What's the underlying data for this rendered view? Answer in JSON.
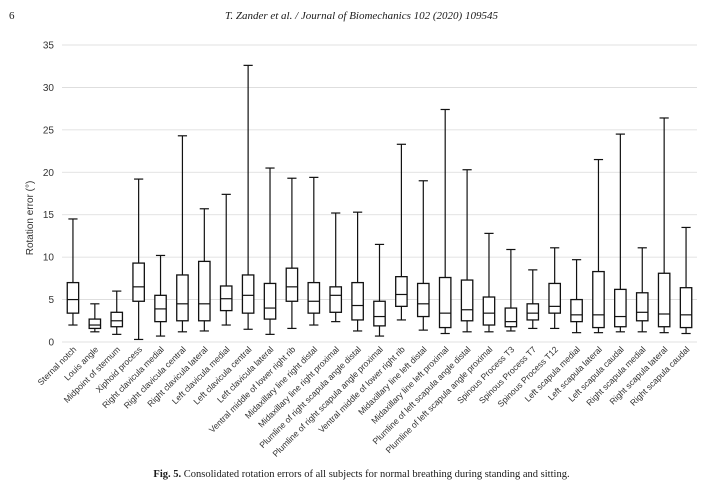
{
  "header": {
    "page_number": "6",
    "running_title": "T. Zander et al. / Journal of Biomechanics 102 (2020) 109545"
  },
  "caption": {
    "label": "Fig. 5.",
    "text": "Consolidated rotation errors of all subjects for normal breathing during standing and sitting."
  },
  "chart_data": {
    "type": "boxplot",
    "title": "",
    "xlabel": "",
    "ylabel": "Rotation error (°)",
    "ylim": [
      0,
      35
    ],
    "yticks": [
      0,
      5,
      10,
      15,
      20,
      25,
      30,
      35
    ],
    "grid": "horizontal",
    "categories": [
      "Sternal notch",
      "Louis angle",
      "Midpoint of sternum",
      "Xiphoid process",
      "Right clavicula medial",
      "Right clavicula central",
      "Right clavicula lateral",
      "Left clavicula medial",
      "Left clavicula central",
      "Left clavicula lateral",
      "Ventral middle of lower right rib",
      "Midaxillary line right distal",
      "Midaxillary line right proximal",
      "Plumline of right scapula angle distal",
      "Plumline of right scapula angle proximal",
      "Ventral middle of lower right rib",
      "Midaxillary line left distal",
      "Midaxillary line left proximal",
      "Plumline of left scapula angle distal",
      "Plumline of left scapula angle proximal",
      "Spinous Process T3",
      "Spinous Process T7",
      "Spinous Process T12",
      "Left scapula medial",
      "Left scapula lateral",
      "Left scapula caudal",
      "Right scapula medial",
      "Right scapula lateral",
      "Right scapula caudal"
    ],
    "boxes": [
      {
        "min": 2.0,
        "q1": 3.4,
        "median": 5.0,
        "q3": 7.0,
        "max": 14.5
      },
      {
        "min": 1.2,
        "q1": 1.6,
        "median": 2.0,
        "q3": 2.7,
        "max": 4.5
      },
      {
        "min": 0.9,
        "q1": 1.8,
        "median": 2.5,
        "q3": 3.5,
        "max": 6.0
      },
      {
        "min": 0.3,
        "q1": 4.8,
        "median": 6.5,
        "q3": 9.3,
        "max": 19.2
      },
      {
        "min": 0.7,
        "q1": 2.4,
        "median": 3.9,
        "q3": 5.5,
        "max": 10.2
      },
      {
        "min": 1.2,
        "q1": 2.5,
        "median": 4.5,
        "q3": 7.9,
        "max": 24.3
      },
      {
        "min": 1.3,
        "q1": 2.5,
        "median": 4.5,
        "q3": 9.5,
        "max": 15.7
      },
      {
        "min": 2.0,
        "q1": 3.7,
        "median": 5.1,
        "q3": 6.6,
        "max": 17.4
      },
      {
        "min": 1.5,
        "q1": 3.4,
        "median": 5.5,
        "q3": 7.9,
        "max": 32.6
      },
      {
        "min": 0.9,
        "q1": 2.7,
        "median": 4.0,
        "q3": 6.9,
        "max": 20.5
      },
      {
        "min": 1.6,
        "q1": 4.8,
        "median": 6.5,
        "q3": 8.7,
        "max": 19.3
      },
      {
        "min": 2.0,
        "q1": 3.4,
        "median": 4.8,
        "q3": 7.0,
        "max": 19.4
      },
      {
        "min": 2.4,
        "q1": 3.5,
        "median": 5.5,
        "q3": 6.5,
        "max": 15.2
      },
      {
        "min": 1.3,
        "q1": 2.6,
        "median": 4.3,
        "q3": 7.0,
        "max": 15.3
      },
      {
        "min": 0.7,
        "q1": 1.9,
        "median": 3.0,
        "q3": 4.8,
        "max": 11.5
      },
      {
        "min": 2.6,
        "q1": 4.2,
        "median": 5.6,
        "q3": 7.7,
        "max": 23.3
      },
      {
        "min": 1.4,
        "q1": 3.0,
        "median": 4.5,
        "q3": 6.9,
        "max": 19.0
      },
      {
        "min": 1.0,
        "q1": 1.7,
        "median": 3.4,
        "q3": 7.6,
        "max": 27.4
      },
      {
        "min": 1.2,
        "q1": 2.5,
        "median": 3.8,
        "q3": 7.3,
        "max": 20.3
      },
      {
        "min": 1.2,
        "q1": 2.0,
        "median": 3.4,
        "q3": 5.3,
        "max": 12.8
      },
      {
        "min": 1.3,
        "q1": 1.8,
        "median": 2.4,
        "q3": 4.0,
        "max": 10.9
      },
      {
        "min": 1.6,
        "q1": 2.6,
        "median": 3.4,
        "q3": 4.5,
        "max": 8.5
      },
      {
        "min": 1.6,
        "q1": 3.4,
        "median": 4.2,
        "q3": 6.9,
        "max": 11.1
      },
      {
        "min": 1.1,
        "q1": 2.4,
        "median": 3.2,
        "q3": 5.0,
        "max": 9.7
      },
      {
        "min": 1.1,
        "q1": 1.7,
        "median": 3.2,
        "q3": 8.3,
        "max": 21.5
      },
      {
        "min": 1.2,
        "q1": 1.8,
        "median": 3.0,
        "q3": 6.2,
        "max": 24.5
      },
      {
        "min": 1.2,
        "q1": 2.5,
        "median": 3.5,
        "q3": 5.8,
        "max": 11.1
      },
      {
        "min": 1.1,
        "q1": 1.8,
        "median": 3.3,
        "q3": 8.1,
        "max": 26.4
      },
      {
        "min": 1.0,
        "q1": 1.7,
        "median": 3.2,
        "q3": 6.4,
        "max": 13.5
      }
    ]
  }
}
